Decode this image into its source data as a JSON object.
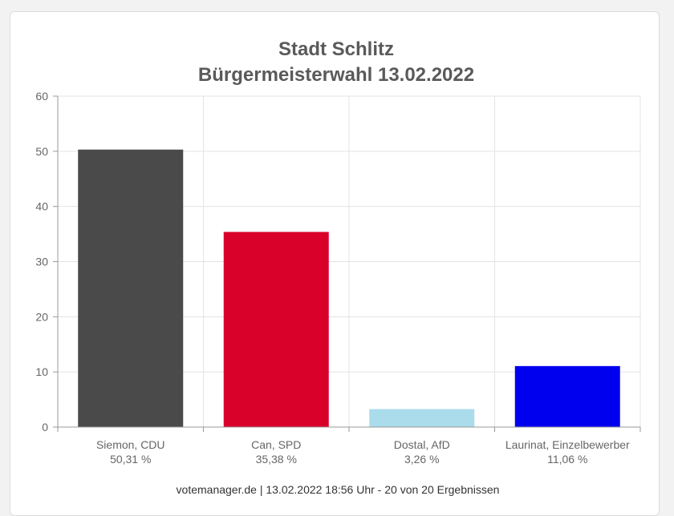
{
  "chart_data": {
    "type": "bar",
    "title": "Stadt Schlitz",
    "subtitle": "Bürgermeisterwahl 13.02.2022",
    "categories": [
      "Siemon, CDU",
      "Can, SPD",
      "Dostal, AfD",
      "Laurinat, Einzelbewerber"
    ],
    "value_labels": [
      "50,31 %",
      "35,38 %",
      "3,26 %",
      "11,06 %"
    ],
    "values": [
      50.31,
      35.38,
      3.26,
      11.06
    ],
    "colors": [
      "#4a4a4a",
      "#d9002a",
      "#aadcec",
      "#0000ee"
    ],
    "ylim": [
      0,
      60
    ],
    "yticks": [
      "0",
      "10",
      "20",
      "30",
      "40",
      "50",
      "60"
    ],
    "grid": true
  },
  "footer": "votemanager.de | 13.02.2022 18:56 Uhr - 20 von 20 Ergebnissen"
}
